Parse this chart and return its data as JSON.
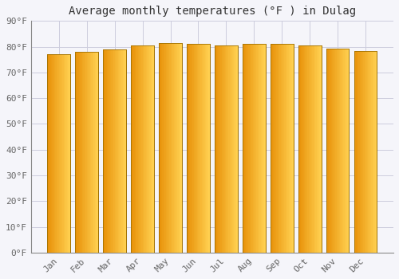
{
  "title": "Average monthly temperatures (°F ) in Dulag",
  "months": [
    "Jan",
    "Feb",
    "Mar",
    "Apr",
    "May",
    "Jun",
    "Jul",
    "Aug",
    "Sep",
    "Oct",
    "Nov",
    "Dec"
  ],
  "values": [
    77.2,
    77.9,
    79.0,
    80.6,
    81.5,
    81.1,
    80.6,
    81.0,
    81.0,
    80.5,
    79.2,
    78.4
  ],
  "bar_color_left": "#E8920A",
  "bar_color_right": "#FFD050",
  "bar_edge_color": "#A07000",
  "background_color": "#f5f5fa",
  "plot_bg_color": "#f5f5fa",
  "grid_color": "#ccccdd",
  "ylim": [
    0,
    90
  ],
  "yticks": [
    0,
    10,
    20,
    30,
    40,
    50,
    60,
    70,
    80,
    90
  ],
  "ytick_labels": [
    "0°F",
    "10°F",
    "20°F",
    "30°F",
    "40°F",
    "50°F",
    "60°F",
    "70°F",
    "80°F",
    "90°F"
  ],
  "title_fontsize": 10,
  "tick_fontsize": 8,
  "font_family": "monospace",
  "bar_width": 0.82
}
